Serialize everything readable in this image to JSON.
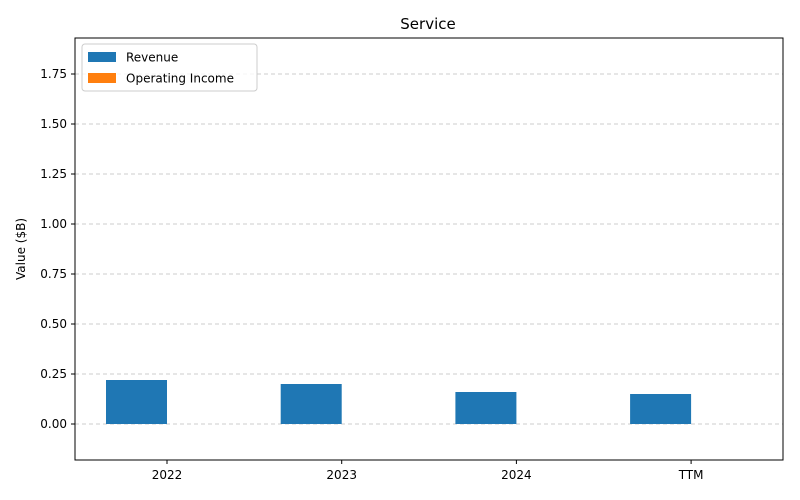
{
  "chart_data": {
    "type": "bar",
    "title": "Service",
    "xlabel": "",
    "ylabel": "Value ($B)",
    "categories": [
      "2022",
      "2023",
      "2024",
      "TTM"
    ],
    "series": [
      {
        "name": "Revenue",
        "color": "#1f77b4",
        "values": [
          0.22,
          0.2,
          0.16,
          0.15
        ]
      },
      {
        "name": "Operating Income",
        "color": "#ff7f0e",
        "values": [
          0,
          0,
          0,
          0
        ]
      }
    ],
    "ylim": [
      -0.18,
      1.93
    ],
    "yticks": [
      0.0,
      0.25,
      0.5,
      0.75,
      1.0,
      1.25,
      1.5,
      1.75
    ],
    "ytick_labels": [
      "0.00",
      "0.25",
      "0.50",
      "0.75",
      "1.00",
      "1.25",
      "1.50",
      "1.75"
    ],
    "grid": true,
    "legend_position": "top-left"
  }
}
